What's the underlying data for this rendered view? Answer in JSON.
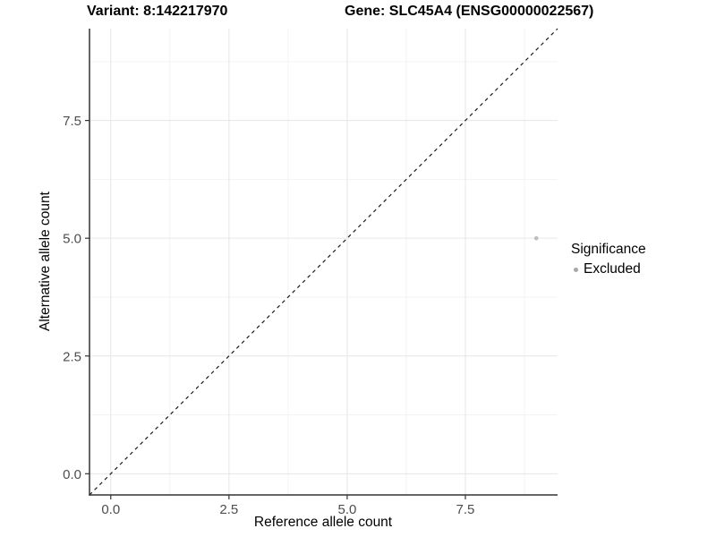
{
  "figure": {
    "background": "#ffffff",
    "title_left": "Variant: 8:142217970",
    "title_right": "Gene: SLC45A4 (ENSG00000022567)"
  },
  "chart_data": {
    "type": "scatter",
    "title": "Variant: 8:142217970   Gene: SLC45A4 (ENSG00000022567)",
    "xlabel": "Reference allele count",
    "ylabel": "Alternative allele count",
    "xlim": [
      -0.45,
      9.45
    ],
    "ylim": [
      -0.45,
      9.45
    ],
    "x_major_ticks": [
      0,
      2.5,
      5,
      7.5
    ],
    "x_tick_labels": [
      "0.0",
      "2.5",
      "5.0",
      "7.5"
    ],
    "y_major_ticks": [
      0,
      2.5,
      5,
      7.5
    ],
    "y_tick_labels": [
      "0.0",
      "2.5",
      "5.0",
      "7.5"
    ],
    "x_minor_ticks": [
      1.25,
      3.75,
      6.25,
      8.75
    ],
    "y_minor_ticks": [
      1.25,
      3.75,
      6.25,
      8.75
    ],
    "grid": true,
    "reference_line": {
      "slope": 1,
      "intercept": 0,
      "style": "dashed",
      "color": "#1a1a1a"
    },
    "series": [
      {
        "name": "Excluded",
        "color": "#bebebe",
        "points": [
          {
            "x": 9,
            "y": 5
          }
        ]
      }
    ],
    "legend": {
      "title": "Significance",
      "position": "right",
      "items": [
        {
          "label": "Excluded",
          "color": "#a8a8a8"
        }
      ]
    },
    "colors": {
      "grid_major": "#e6e6e6",
      "grid_minor": "#f3f3f3",
      "axis_line": "#333333",
      "tick_label": "#4d4d4d",
      "point": "#bebebe"
    }
  }
}
